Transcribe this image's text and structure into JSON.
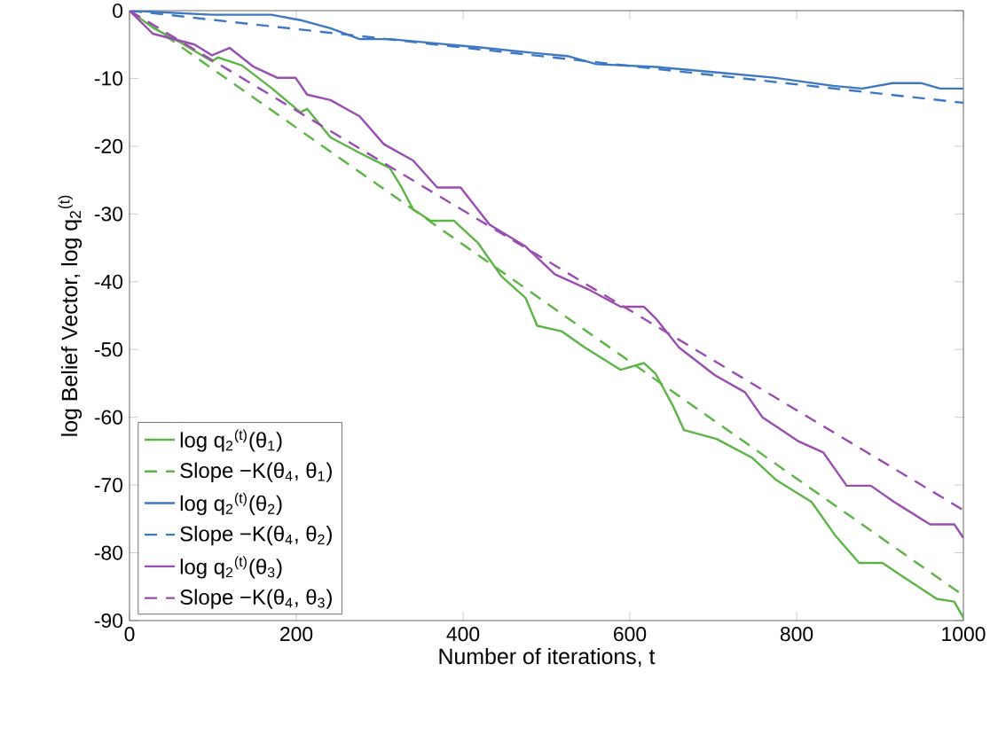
{
  "chart_data": {
    "type": "line",
    "xlabel": "Number of iterations, t",
    "ylabel": "log Belief Vector, log q$_{2}$$^{(t)}$",
    "xlim": [
      0,
      1000
    ],
    "ylim": [
      -90,
      0
    ],
    "xticks": [
      0,
      200,
      400,
      600,
      800,
      1000
    ],
    "yticks": [
      -90,
      -80,
      -70,
      -60,
      -50,
      -40,
      -30,
      -20,
      -10,
      0
    ],
    "grid": false,
    "legend": "bottom left",
    "marker": "none",
    "series": [
      {
        "name": "log q$_{2}$$^{(t)}$(θ$_{1}$)",
        "color": "#5cb346",
        "line_style": "solid",
        "x": [
          0,
          28,
          64,
          99,
          106,
          135,
          170,
          205,
          213,
          241,
          276,
          312,
          326,
          340,
          361,
          389,
          418,
          446,
          475,
          489,
          518,
          546,
          589,
          617,
          631,
          652,
          665,
          704,
          747,
          776,
          818,
          846,
          875,
          903,
          932,
          968,
          989,
          1000
        ],
        "values": [
          0,
          -2.5,
          -4.9,
          -7.5,
          -6.9,
          -8.1,
          -11.4,
          -15,
          -14.5,
          -18.7,
          -21,
          -23.2,
          -26,
          -29.3,
          -31,
          -31,
          -34.3,
          -39.2,
          -42.4,
          -46.5,
          -47.3,
          -49.7,
          -53,
          -52,
          -53.6,
          -58.4,
          -61.9,
          -63.2,
          -66,
          -69.3,
          -72.5,
          -77.4,
          -81.5,
          -81.5,
          -83.9,
          -86.8,
          -87.2,
          -89.6
        ]
      },
      {
        "name": "Slope −K(θ$_{4}$, θ$_{1}$)",
        "color": "#5cb346",
        "line_style": "dashed",
        "x": [
          0,
          1000
        ],
        "values": [
          0,
          -86.3
        ]
      },
      {
        "name": "log q$_{2}$$^{(t)}$(θ$_{2}$)",
        "color": "#3f78c2",
        "line_style": "solid",
        "x": [
          0,
          99,
          170,
          205,
          241,
          276,
          312,
          347,
          418,
          489,
          525,
          560,
          631,
          702,
          773,
          844,
          879,
          915,
          950,
          972,
          1000
        ],
        "values": [
          0,
          -0.6,
          -0.6,
          -1.4,
          -2.6,
          -4.2,
          -4.2,
          -4.6,
          -5.4,
          -6.3,
          -6.7,
          -7.9,
          -8.3,
          -9.1,
          -9.9,
          -11.1,
          -11.5,
          -10.7,
          -10.7,
          -11.5,
          -11.5
        ]
      },
      {
        "name": "Slope −K(θ$_{4}$, θ$_{2}$)",
        "color": "#3f78c2",
        "line_style": "dashed",
        "x": [
          0,
          1000
        ],
        "values": [
          0,
          -13.6
        ]
      },
      {
        "name": "log q$_{2}$$^{(t)}$(θ$_{3}$)",
        "color": "#9a4db0",
        "line_style": "solid",
        "x": [
          0,
          28,
          78,
          99,
          120,
          149,
          177,
          199,
          213,
          241,
          276,
          305,
          340,
          369,
          397,
          418,
          432,
          475,
          510,
          553,
          589,
          617,
          631,
          659,
          702,
          738,
          759,
          803,
          832,
          860,
          889,
          917,
          960,
          989,
          1000
        ],
        "values": [
          0,
          -3.4,
          -5,
          -6.6,
          -5.5,
          -8.3,
          -9.9,
          -9.9,
          -12.4,
          -13.2,
          -15.6,
          -19.7,
          -22.1,
          -26.1,
          -26.1,
          -29.4,
          -31.6,
          -34.8,
          -38.9,
          -41.3,
          -43.7,
          -43.7,
          -45.4,
          -49.7,
          -53.8,
          -56.3,
          -60,
          -63.6,
          -65.2,
          -70.1,
          -70.1,
          -72.5,
          -75.8,
          -75.8,
          -77.8
        ]
      },
      {
        "name": "Slope −K(θ$_{4}$, θ$_{3}$)",
        "color": "#9a4db0",
        "line_style": "dashed",
        "x": [
          0,
          1000
        ],
        "values": [
          0,
          -73.7
        ]
      }
    ]
  }
}
